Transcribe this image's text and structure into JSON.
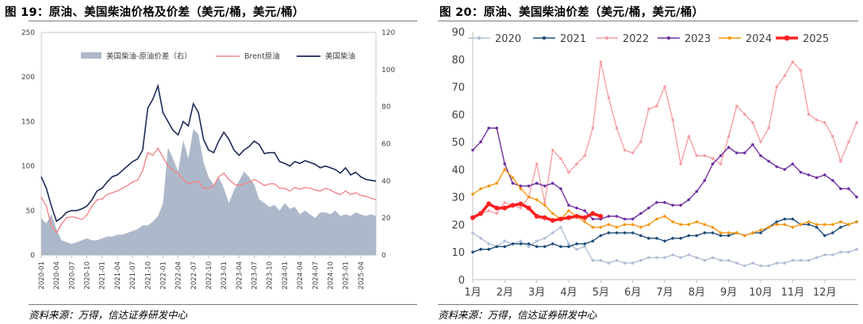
{
  "figure19": {
    "title": "图 19：原油、美国柴油价格及价差（美元/桶，美元/桶）",
    "source": "资料来源：万得，信达证券研发中心",
    "chart_data": {
      "type": "line",
      "legend": [
        "美国柴油-原油价差（右）",
        "Brent原油",
        "美国柴油"
      ],
      "legend_placement": "top",
      "left_axis": {
        "ylim": [
          0,
          250
        ],
        "ticks": [
          0,
          50,
          100,
          150,
          200,
          250
        ]
      },
      "right_axis": {
        "ylim": [
          0,
          120
        ],
        "ticks": [
          0,
          20,
          40,
          60,
          80,
          100,
          120
        ]
      },
      "xticks": [
        "2020-01",
        "2020-04",
        "2020-07",
        "2020-10",
        "2021-01",
        "2021-04",
        "2021-07",
        "2021-10",
        "2022-01",
        "2022-04",
        "2022-07",
        "2022-10",
        "2023-01",
        "2023-04",
        "2023-07",
        "2023-10",
        "2024-01",
        "2024-04",
        "2024-07",
        "2024-10",
        "2025-01",
        "2025-04"
      ],
      "x_months": [
        0,
        1,
        2,
        3,
        4,
        5,
        6,
        7,
        8,
        9,
        10,
        11,
        12,
        13,
        14,
        15,
        16,
        17,
        18,
        19,
        20,
        21,
        22,
        23,
        24,
        25,
        26,
        27,
        28,
        29,
        30,
        31,
        32,
        33,
        34,
        35,
        36,
        37,
        38,
        39,
        40,
        41,
        42,
        43,
        44,
        45,
        46,
        47,
        48,
        49,
        50,
        51,
        52,
        53,
        54,
        55,
        56,
        57,
        58,
        59,
        60,
        61,
        62,
        63,
        64,
        65,
        66
      ],
      "series": [
        {
          "name": "美国柴油-原油价差（右）",
          "axis": "right",
          "color": "#adb9ca",
          "values": [
            20,
            17,
            22,
            14,
            8,
            7,
            6,
            7,
            8,
            9,
            8,
            8,
            9,
            10,
            10,
            11,
            11,
            12,
            13,
            14,
            16,
            16,
            18,
            21,
            28,
            58,
            52,
            45,
            62,
            52,
            68,
            65,
            50,
            42,
            38,
            42,
            36,
            28,
            35,
            40,
            45,
            42,
            38,
            30,
            28,
            26,
            27,
            24,
            28,
            25,
            26,
            22,
            24,
            22,
            20,
            23,
            23,
            22,
            24,
            21,
            22,
            21,
            23,
            22,
            21,
            22,
            21
          ]
        },
        {
          "name": "Brent原油",
          "color": "#f4858a",
          "values": [
            65,
            55,
            33,
            25,
            35,
            42,
            43,
            42,
            40,
            45,
            55,
            62,
            63,
            68,
            70,
            72,
            75,
            78,
            82,
            84,
            95,
            115,
            112,
            120,
            110,
            100,
            95,
            92,
            85,
            80,
            82,
            83,
            75,
            75,
            78,
            88,
            92,
            85,
            80,
            78,
            80,
            82,
            85,
            82,
            78,
            80,
            80,
            75,
            75,
            72,
            76,
            74,
            76,
            75,
            73,
            72,
            75,
            73,
            70,
            68,
            72,
            68,
            70,
            67,
            66,
            64,
            62
          ]
        },
        {
          "name": "美国柴油",
          "color": "#1b2a58",
          "values": [
            88,
            75,
            55,
            38,
            42,
            48,
            50,
            50,
            52,
            55,
            62,
            72,
            75,
            82,
            88,
            90,
            95,
            100,
            105,
            108,
            118,
            165,
            175,
            190,
            160,
            150,
            140,
            135,
            150,
            145,
            170,
            160,
            130,
            118,
            115,
            128,
            138,
            130,
            118,
            112,
            118,
            122,
            128,
            124,
            114,
            115,
            115,
            105,
            103,
            100,
            105,
            103,
            106,
            104,
            102,
            98,
            100,
            98,
            96,
            92,
            98,
            90,
            93,
            88,
            85,
            84,
            83
          ]
        }
      ]
    }
  },
  "figure20": {
    "title": "图 20：原油、美国柴油价差（美元/桶，美元/桶）",
    "source": "资料来源：万得，信达证券研发中心",
    "chart_data": {
      "type": "line",
      "ylim": [
        0,
        90
      ],
      "yticks": [
        0,
        10,
        20,
        30,
        40,
        50,
        60,
        70,
        80,
        90
      ],
      "xlim": [
        1,
        13
      ],
      "xticks": [
        "1月",
        "2月",
        "3月",
        "4月",
        "5月",
        "6月",
        "7月",
        "8月",
        "9月",
        "10月",
        "11月",
        "12月"
      ],
      "legend_placement": "top",
      "series": [
        {
          "name": "2020",
          "color": "#b2bfd6",
          "x": [
            1,
            1.25,
            1.5,
            1.75,
            2,
            2.25,
            2.5,
            2.75,
            3,
            3.25,
            3.5,
            3.75,
            4,
            4.25,
            4.5,
            4.75,
            5,
            5.25,
            5.5,
            5.75,
            6,
            6.25,
            6.5,
            6.75,
            7,
            7.25,
            7.5,
            7.75,
            8,
            8.25,
            8.5,
            8.75,
            9,
            9.25,
            9.5,
            9.75,
            10,
            10.25,
            10.5,
            10.75,
            11,
            11.25,
            11.5,
            11.75,
            12,
            12.25,
            12.5,
            12.75,
            13
          ],
          "y": [
            17,
            15,
            13,
            12,
            14,
            13,
            14,
            12,
            14,
            15,
            17,
            19,
            13,
            11,
            12,
            7,
            7,
            6,
            7,
            6,
            6,
            7,
            8,
            8,
            8,
            9,
            8,
            9,
            8,
            7,
            8,
            7,
            7,
            6,
            5,
            6,
            5,
            5,
            6,
            6,
            7,
            7,
            7,
            8,
            9,
            9,
            10,
            10,
            11
          ]
        },
        {
          "name": "2021",
          "color": "#1f4e79",
          "x": [
            1,
            1.25,
            1.5,
            1.75,
            2,
            2.25,
            2.5,
            2.75,
            3,
            3.25,
            3.5,
            3.75,
            4,
            4.25,
            4.5,
            4.75,
            5,
            5.25,
            5.5,
            5.75,
            6,
            6.25,
            6.5,
            6.75,
            7,
            7.25,
            7.5,
            7.75,
            8,
            8.25,
            8.5,
            8.75,
            9,
            9.25,
            9.5,
            9.75,
            10,
            10.25,
            10.5,
            10.75,
            11,
            11.25,
            11.5,
            11.75,
            12,
            12.25,
            12.5,
            12.75,
            13
          ],
          "y": [
            10,
            11,
            11,
            12,
            12,
            13,
            13,
            13,
            12,
            12,
            13,
            12,
            12,
            13,
            13,
            14,
            16,
            17,
            17,
            17,
            17,
            16,
            15,
            15,
            14,
            15,
            15,
            16,
            16,
            17,
            17,
            16,
            16,
            17,
            16,
            17,
            17,
            19,
            21,
            22,
            22,
            20,
            20,
            19,
            16,
            17,
            19,
            20,
            21
          ]
        },
        {
          "name": "2022",
          "color": "#f4a0a4",
          "x": [
            1,
            1.25,
            1.5,
            1.75,
            2,
            2.25,
            2.5,
            2.75,
            3,
            3.25,
            3.5,
            3.75,
            4,
            4.25,
            4.5,
            4.75,
            5,
            5.25,
            5.5,
            5.75,
            6,
            6.25,
            6.5,
            6.75,
            7,
            7.25,
            7.5,
            7.75,
            8,
            8.25,
            8.5,
            8.75,
            9,
            9.25,
            9.5,
            9.75,
            10,
            10.25,
            10.5,
            10.75,
            11,
            11.25,
            11.5,
            11.75,
            12,
            12.25,
            12.5,
            12.75,
            13
          ],
          "y": [
            22,
            24,
            25,
            24,
            28,
            27,
            26,
            30,
            42,
            28,
            47,
            44,
            39,
            42,
            45,
            55,
            79,
            66,
            55,
            47,
            46,
            50,
            62,
            63,
            70,
            58,
            42,
            52,
            45,
            45,
            44,
            42,
            52,
            63,
            60,
            57,
            50,
            55,
            70,
            74,
            79,
            76,
            60,
            58,
            57,
            52,
            43,
            50,
            57
          ]
        },
        {
          "name": "2023",
          "color": "#7030a0",
          "x": [
            1,
            1.25,
            1.5,
            1.75,
            2,
            2.25,
            2.5,
            2.75,
            3,
            3.25,
            3.5,
            3.75,
            4,
            4.25,
            4.5,
            4.75,
            5,
            5.25,
            5.5,
            5.75,
            6,
            6.25,
            6.5,
            6.75,
            7,
            7.25,
            7.5,
            7.75,
            8,
            8.25,
            8.5,
            8.75,
            9,
            9.25,
            9.5,
            9.75,
            10,
            10.25,
            10.5,
            10.75,
            11,
            11.25,
            11.5,
            11.75,
            12,
            12.25,
            12.5,
            12.75,
            13
          ],
          "y": [
            47,
            50,
            55,
            55,
            42,
            35,
            34,
            34,
            35,
            34,
            35,
            33,
            27,
            26,
            25,
            22,
            22,
            23,
            23,
            22,
            22,
            24,
            26,
            28,
            28,
            27,
            27,
            29,
            32,
            36,
            42,
            45,
            48,
            46,
            46,
            49,
            45,
            43,
            41,
            40,
            42,
            39,
            38,
            37,
            38,
            36,
            33,
            33,
            30
          ]
        },
        {
          "name": "2024",
          "color": "#f5950e",
          "x": [
            1,
            1.25,
            1.5,
            1.75,
            2,
            2.25,
            2.5,
            2.75,
            3,
            3.25,
            3.5,
            3.75,
            4,
            4.25,
            4.5,
            4.75,
            5,
            5.25,
            5.5,
            5.75,
            6,
            6.25,
            6.5,
            6.75,
            7,
            7.25,
            7.5,
            7.75,
            8,
            8.25,
            8.5,
            8.75,
            9,
            9.25,
            9.5,
            9.75,
            10,
            10.25,
            10.5,
            10.75,
            11,
            11.25,
            11.5,
            11.75,
            12,
            12.25,
            12.5,
            12.75,
            13
          ],
          "y": [
            31,
            33,
            34,
            35,
            40,
            37,
            33,
            30,
            29,
            27,
            24,
            22,
            25,
            23,
            21,
            19,
            19,
            20,
            19,
            20,
            20,
            19,
            20,
            22,
            23,
            21,
            20,
            20,
            21,
            20,
            19,
            17,
            17,
            17,
            16,
            17,
            18,
            19,
            20,
            20,
            19,
            20,
            21,
            20,
            20,
            20,
            21,
            20,
            21
          ]
        },
        {
          "name": "2025",
          "color": "#ff2020",
          "x": [
            1,
            1.25,
            1.5,
            1.75,
            2,
            2.25,
            2.5,
            2.75,
            3,
            3.25,
            3.5,
            3.75,
            4,
            4.25,
            4.5,
            4.75,
            5
          ],
          "y": [
            22.5,
            24,
            27.5,
            26,
            26,
            27,
            27.5,
            26,
            23,
            22.5,
            21.5,
            22,
            22.5,
            23,
            22.5,
            24,
            23
          ]
        }
      ]
    }
  }
}
